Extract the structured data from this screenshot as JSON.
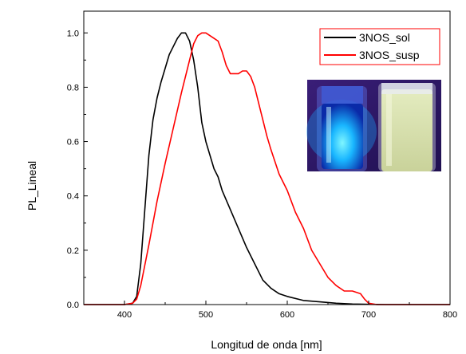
{
  "chart_data": {
    "type": "line",
    "title": "",
    "xlabel": "Longitud de onda [nm]",
    "ylabel": "PL_Lineal",
    "xlim": [
      350,
      800
    ],
    "ylim": [
      0,
      1.08
    ],
    "x_ticks": [
      "400",
      "500",
      "600",
      "700",
      "800"
    ],
    "y_ticks": [
      "0.0",
      "0.2",
      "0.4",
      "0.6",
      "0.8",
      "1.0"
    ],
    "grid": false,
    "legend_position": "top-right",
    "series": [
      {
        "name": "3NOS_sol",
        "color": "#000000",
        "x": [
          350,
          400,
          410,
          415,
          420,
          425,
          430,
          435,
          440,
          445,
          450,
          455,
          460,
          465,
          470,
          475,
          480,
          485,
          490,
          495,
          500,
          505,
          510,
          515,
          520,
          530,
          540,
          550,
          560,
          570,
          580,
          590,
          600,
          620,
          640,
          660,
          680,
          700,
          720,
          800
        ],
        "y": [
          0,
          0,
          0.005,
          0.03,
          0.15,
          0.35,
          0.55,
          0.68,
          0.76,
          0.82,
          0.87,
          0.92,
          0.95,
          0.98,
          1.0,
          1.0,
          0.97,
          0.9,
          0.8,
          0.67,
          0.6,
          0.55,
          0.5,
          0.47,
          0.42,
          0.35,
          0.28,
          0.21,
          0.15,
          0.09,
          0.06,
          0.04,
          0.03,
          0.015,
          0.01,
          0.005,
          0.002,
          0.001,
          0,
          0
        ]
      },
      {
        "name": "3NOS_susp",
        "color": "#ff0000",
        "x": [
          350,
          400,
          410,
          415,
          420,
          430,
          440,
          450,
          460,
          470,
          480,
          485,
          490,
          495,
          500,
          505,
          510,
          515,
          520,
          525,
          530,
          535,
          540,
          545,
          550,
          555,
          560,
          565,
          570,
          575,
          580,
          590,
          600,
          610,
          620,
          630,
          640,
          650,
          660,
          670,
          680,
          690,
          695,
          700,
          710,
          800
        ],
        "y": [
          0,
          0,
          0.005,
          0.02,
          0.07,
          0.22,
          0.38,
          0.52,
          0.65,
          0.78,
          0.9,
          0.96,
          0.99,
          1.0,
          1.0,
          0.99,
          0.98,
          0.97,
          0.93,
          0.88,
          0.85,
          0.85,
          0.85,
          0.86,
          0.86,
          0.84,
          0.8,
          0.74,
          0.68,
          0.62,
          0.57,
          0.48,
          0.42,
          0.34,
          0.28,
          0.2,
          0.15,
          0.1,
          0.07,
          0.05,
          0.05,
          0.04,
          0.02,
          0.005,
          0,
          0
        ]
      }
    ]
  }
}
